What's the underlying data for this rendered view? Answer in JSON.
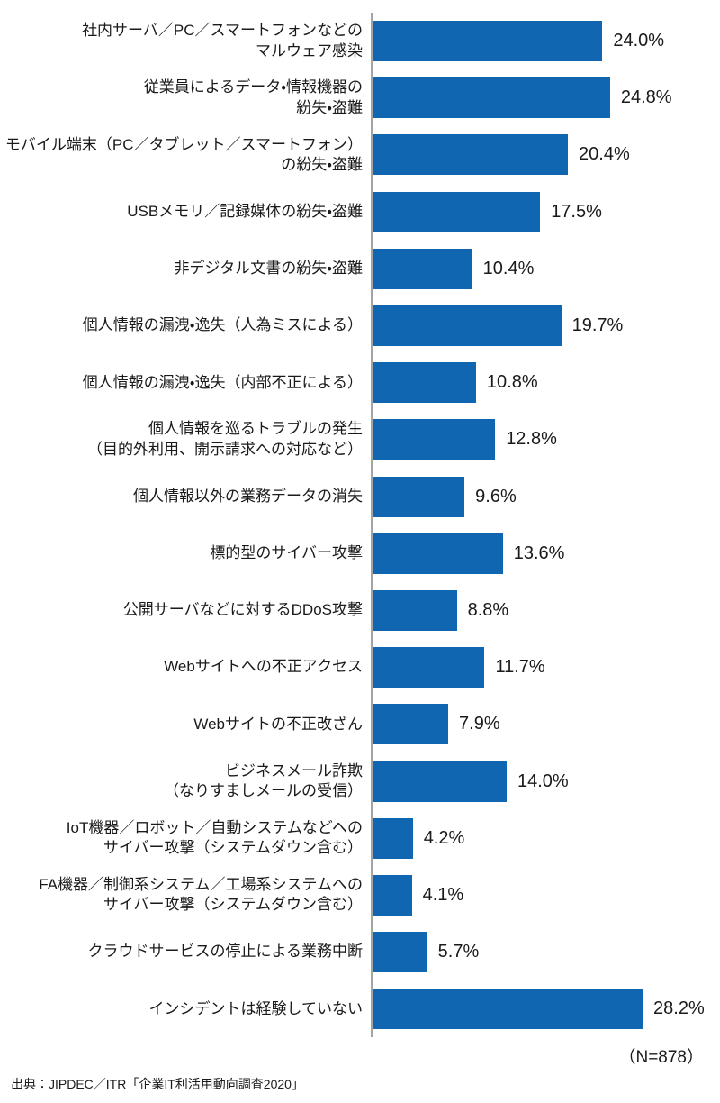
{
  "chart_data": {
    "type": "bar",
    "orientation": "horizontal",
    "unit": "%",
    "xlim": [
      0,
      30
    ],
    "grid": false,
    "legend": "none",
    "bar_color": "#1166B2",
    "axis_color": "#A3A3A3",
    "categories": [
      "社内サーバ／PC／スマートフォンなどの\nマルウェア感染",
      "従業員によるデータ・情報機器の\n紛失・盗難",
      "モバイル端末（PC／タブレット／スマートフォン）\nの紛失・盗難",
      "USBメモリ／記録媒体の紛失・盗難",
      "非デジタル文書の紛失・盗難",
      "個人情報の漏洩・逸失（人為ミスによる）",
      "個人情報の漏洩・逸失（内部不正による）",
      "個人情報を巡るトラブルの発生\n（目的外利用、開示請求への対応など）",
      "個人情報以外の業務データの消失",
      "標的型のサイバー攻撃",
      "公開サーバなどに対するDDoS攻撃",
      "Webサイトへの不正アクセス",
      "Webサイトの不正改ざん",
      "ビジネスメール詐欺\n（なりすましメールの受信）",
      "IoT機器／ロボット／自動システムなどへの\nサイバー攻撃（システムダウン含む）",
      "FA機器／制御系システム／工場系システムへの\nサイバー攻撃（システムダウン含む）",
      "クラウドサービスの停止による業務中断",
      "インシデントは経験していない"
    ],
    "values": [
      24.0,
      24.8,
      20.4,
      17.5,
      10.4,
      19.7,
      10.8,
      12.8,
      9.6,
      13.6,
      8.8,
      11.7,
      7.9,
      14.0,
      4.2,
      4.1,
      5.7,
      28.2
    ],
    "value_labels": [
      "24.0%",
      "24.8%",
      "20.4%",
      "17.5%",
      "10.4%",
      "19.7%",
      "10.8%",
      "12.8%",
      "9.6%",
      "13.6%",
      "8.8%",
      "11.7%",
      "7.9%",
      "14.0%",
      "4.2%",
      "4.1%",
      "5.7%",
      "28.2%"
    ],
    "n_label": "（N=878）",
    "source": "出典：JIPDEC／ITR「企業IT利活用動向調査2020」"
  }
}
